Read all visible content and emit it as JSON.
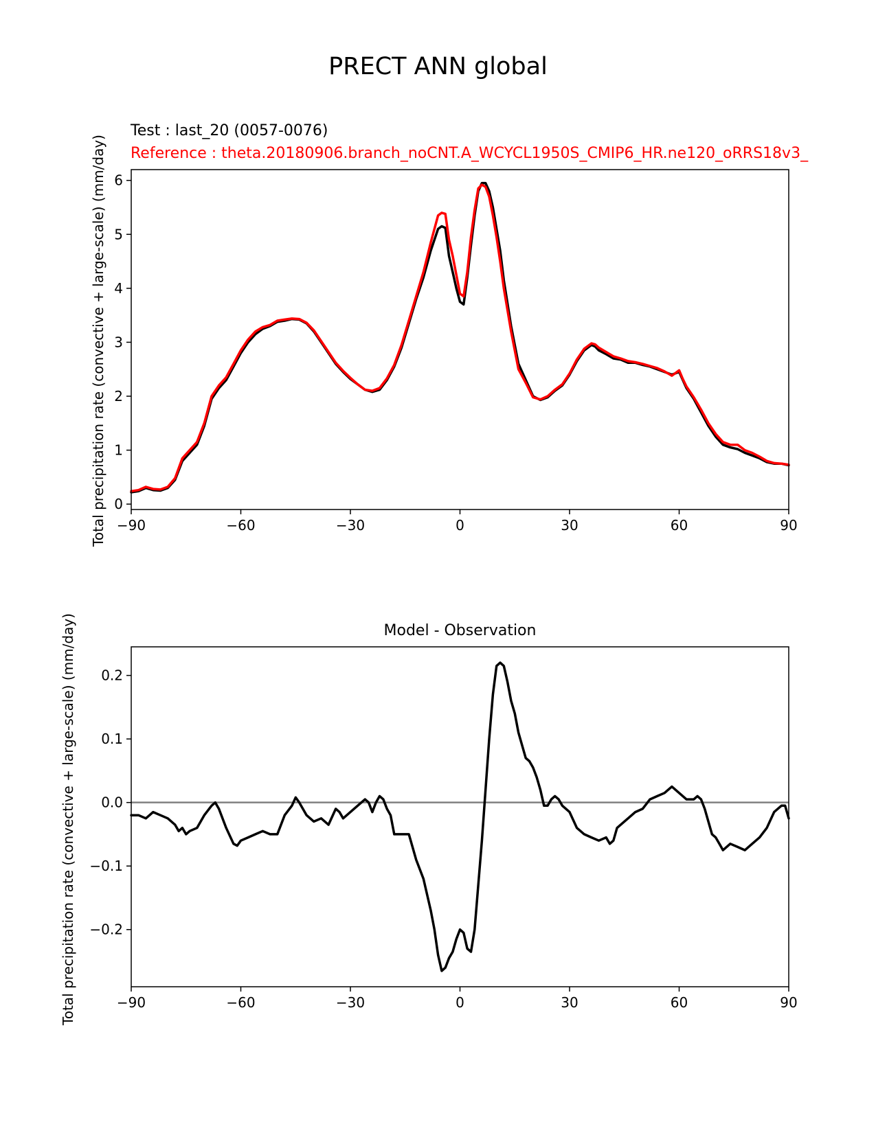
{
  "figure": {
    "title": "PRECT ANN global"
  },
  "chart_data": [
    {
      "type": "line",
      "test_label": "Test : last_20 (0057-0076)",
      "reference_label": "Reference : theta.20180906.branch_noCNT.A_WCYCL1950S_CMIP6_HR.ne120_oRRS18v3_",
      "xlabel": "",
      "ylabel": "Total precipitation rate (convective + large-scale) (mm/day)",
      "xlim": [
        -90,
        90
      ],
      "ylim": [
        -0.1,
        6.2
      ],
      "xticks": [
        -90,
        -60,
        -30,
        0,
        30,
        60,
        90
      ],
      "yticks": [
        0,
        1,
        2,
        3,
        4,
        5,
        6
      ],
      "tick_labels_x": [
        "−90",
        "−60",
        "−30",
        "0",
        "30",
        "60",
        "90"
      ],
      "tick_labels_y": [
        "0",
        "1",
        "2",
        "3",
        "4",
        "5",
        "6"
      ],
      "grid": false,
      "series": [
        {
          "name": "Test",
          "color": "#000000",
          "x": [
            -90,
            -88,
            -86,
            -84,
            -82,
            -80,
            -78,
            -76,
            -74,
            -72,
            -70,
            -68,
            -66,
            -64,
            -62,
            -60,
            -58,
            -56,
            -54,
            -52,
            -50,
            -48,
            -46,
            -44,
            -42,
            -40,
            -38,
            -36,
            -34,
            -32,
            -30,
            -28,
            -26,
            -24,
            -22,
            -20,
            -18,
            -16,
            -14,
            -12,
            -10,
            -8,
            -6,
            -5,
            -4,
            -3,
            -2,
            -1,
            0,
            1,
            2,
            3,
            4,
            5,
            6,
            7,
            8,
            9,
            10,
            11,
            12,
            14,
            16,
            18,
            20,
            22,
            24,
            26,
            28,
            30,
            32,
            34,
            36,
            37,
            38,
            40,
            42,
            44,
            46,
            48,
            50,
            52,
            54,
            56,
            58,
            60,
            61,
            62,
            64,
            66,
            68,
            70,
            72,
            74,
            76,
            78,
            80,
            82,
            84,
            86,
            88,
            90
          ],
          "y": [
            0.22,
            0.24,
            0.3,
            0.26,
            0.25,
            0.3,
            0.45,
            0.8,
            0.95,
            1.1,
            1.45,
            1.95,
            2.15,
            2.3,
            2.55,
            2.8,
            3.0,
            3.15,
            3.25,
            3.3,
            3.38,
            3.4,
            3.43,
            3.42,
            3.35,
            3.2,
            3.0,
            2.8,
            2.6,
            2.45,
            2.32,
            2.22,
            2.12,
            2.08,
            2.12,
            2.3,
            2.55,
            2.9,
            3.35,
            3.8,
            4.2,
            4.7,
            5.1,
            5.15,
            5.12,
            4.6,
            4.3,
            4.0,
            3.75,
            3.7,
            4.2,
            4.8,
            5.35,
            5.8,
            5.95,
            5.95,
            5.8,
            5.5,
            5.1,
            4.7,
            4.15,
            3.3,
            2.6,
            2.3,
            2.0,
            1.93,
            1.98,
            2.1,
            2.2,
            2.4,
            2.65,
            2.85,
            2.95,
            2.92,
            2.85,
            2.78,
            2.7,
            2.68,
            2.62,
            2.62,
            2.58,
            2.55,
            2.5,
            2.45,
            2.4,
            2.45,
            2.3,
            2.15,
            1.95,
            1.7,
            1.45,
            1.25,
            1.1,
            1.05,
            1.02,
            0.95,
            0.9,
            0.85,
            0.78,
            0.75,
            0.75,
            0.72
          ]
        },
        {
          "name": "Reference",
          "color": "#ff0000",
          "x": [
            -90,
            -88,
            -86,
            -84,
            -82,
            -80,
            -78,
            -76,
            -74,
            -72,
            -70,
            -68,
            -66,
            -64,
            -62,
            -60,
            -58,
            -56,
            -54,
            -52,
            -50,
            -48,
            -46,
            -44,
            -42,
            -40,
            -38,
            -36,
            -34,
            -32,
            -30,
            -28,
            -26,
            -24,
            -22,
            -20,
            -18,
            -16,
            -14,
            -12,
            -10,
            -8,
            -6,
            -5,
            -4,
            -3,
            -2,
            -1,
            0,
            1,
            2,
            3,
            4,
            5,
            6,
            7,
            8,
            9,
            10,
            11,
            12,
            14,
            16,
            18,
            20,
            22,
            24,
            26,
            28,
            30,
            32,
            34,
            36,
            37,
            38,
            40,
            42,
            44,
            46,
            48,
            50,
            52,
            54,
            56,
            58,
            60,
            61,
            62,
            64,
            66,
            68,
            70,
            72,
            74,
            76,
            78,
            80,
            82,
            84,
            86,
            88,
            90
          ],
          "y": [
            0.24,
            0.26,
            0.32,
            0.28,
            0.27,
            0.32,
            0.48,
            0.85,
            1.0,
            1.15,
            1.5,
            2.0,
            2.2,
            2.35,
            2.6,
            2.85,
            3.05,
            3.2,
            3.28,
            3.32,
            3.4,
            3.42,
            3.44,
            3.43,
            3.36,
            3.22,
            3.02,
            2.82,
            2.62,
            2.47,
            2.34,
            2.22,
            2.12,
            2.1,
            2.15,
            2.33,
            2.58,
            2.95,
            3.4,
            3.85,
            4.3,
            4.85,
            5.35,
            5.4,
            5.38,
            4.9,
            4.6,
            4.25,
            3.9,
            3.85,
            4.3,
            4.95,
            5.45,
            5.85,
            5.92,
            5.88,
            5.7,
            5.35,
            4.95,
            4.5,
            4.0,
            3.2,
            2.5,
            2.25,
            1.98,
            1.94,
            2.0,
            2.12,
            2.22,
            2.42,
            2.68,
            2.88,
            2.98,
            2.96,
            2.9,
            2.82,
            2.74,
            2.7,
            2.65,
            2.63,
            2.6,
            2.56,
            2.52,
            2.46,
            2.38,
            2.48,
            2.32,
            2.18,
            1.98,
            1.75,
            1.5,
            1.3,
            1.15,
            1.1,
            1.1,
            1.0,
            0.95,
            0.88,
            0.8,
            0.76,
            0.75,
            0.73
          ]
        }
      ]
    },
    {
      "type": "line",
      "title": "Model - Observation",
      "xlabel": "",
      "ylabel": "Total precipitation rate (convective + large-scale) (mm/day)",
      "xlim": [
        -90,
        90
      ],
      "ylim": [
        -0.29,
        0.245
      ],
      "xticks": [
        -90,
        -60,
        -30,
        0,
        30,
        60,
        90
      ],
      "yticks": [
        -0.2,
        -0.1,
        0.0,
        0.1,
        0.2
      ],
      "tick_labels_x": [
        "−90",
        "−60",
        "−30",
        "0",
        "30",
        "60",
        "90"
      ],
      "tick_labels_y": [
        "−0.2",
        "−0.1",
        "0.0",
        "0.1",
        "0.2"
      ],
      "grid": false,
      "zero_line_color": "#808080",
      "series": [
        {
          "name": "Model - Observation",
          "color": "#000000",
          "x": [
            -90,
            -88,
            -86,
            -84,
            -82,
            -80,
            -78,
            -77,
            -76,
            -75,
            -74,
            -72,
            -70,
            -68,
            -67,
            -66,
            -64,
            -62,
            -61,
            -60,
            -58,
            -56,
            -54,
            -52,
            -50,
            -48,
            -46,
            -45,
            -44,
            -42,
            -40,
            -38,
            -36,
            -34,
            -33,
            -32,
            -30,
            -28,
            -26,
            -25,
            -24,
            -23,
            -22,
            -21,
            -20,
            -19,
            -18,
            -16,
            -14,
            -13,
            -12,
            -10,
            -8,
            -7,
            -6,
            -5,
            -4,
            -3,
            -2,
            -1,
            0,
            1,
            2,
            3,
            4,
            5,
            6,
            7,
            8,
            9,
            10,
            11,
            12,
            13,
            14,
            15,
            16,
            17,
            18,
            19,
            20,
            21,
            22,
            23,
            24,
            25,
            26,
            27,
            28,
            30,
            32,
            34,
            36,
            38,
            40,
            41,
            42,
            43,
            44,
            46,
            48,
            50,
            52,
            54,
            56,
            57,
            58,
            60,
            62,
            64,
            65,
            66,
            67,
            68,
            69,
            70,
            71,
            72,
            74,
            76,
            78,
            80,
            82,
            84,
            86,
            88,
            89,
            90
          ],
          "y": [
            -0.02,
            -0.02,
            -0.025,
            -0.015,
            -0.02,
            -0.025,
            -0.035,
            -0.045,
            -0.04,
            -0.05,
            -0.045,
            -0.04,
            -0.02,
            -0.005,
            0.0,
            -0.01,
            -0.04,
            -0.065,
            -0.068,
            -0.06,
            -0.055,
            -0.05,
            -0.045,
            -0.05,
            -0.05,
            -0.02,
            -0.005,
            0.008,
            0.0,
            -0.02,
            -0.03,
            -0.025,
            -0.035,
            -0.01,
            -0.015,
            -0.025,
            -0.015,
            -0.005,
            0.005,
            0.0,
            -0.015,
            0.0,
            0.01,
            0.005,
            -0.01,
            -0.02,
            -0.05,
            -0.05,
            -0.05,
            -0.07,
            -0.09,
            -0.12,
            -0.17,
            -0.2,
            -0.24,
            -0.265,
            -0.26,
            -0.245,
            -0.235,
            -0.215,
            -0.2,
            -0.205,
            -0.23,
            -0.235,
            -0.2,
            -0.13,
            -0.06,
            0.02,
            0.1,
            0.17,
            0.215,
            0.22,
            0.215,
            0.19,
            0.16,
            0.14,
            0.11,
            0.09,
            0.07,
            0.065,
            0.055,
            0.04,
            0.02,
            -0.005,
            -0.005,
            0.005,
            0.01,
            0.005,
            -0.005,
            -0.015,
            -0.04,
            -0.05,
            -0.055,
            -0.06,
            -0.055,
            -0.065,
            -0.06,
            -0.04,
            -0.035,
            -0.025,
            -0.015,
            -0.01,
            0.005,
            0.01,
            0.015,
            0.02,
            0.025,
            0.015,
            0.005,
            0.005,
            0.01,
            0.005,
            -0.01,
            -0.03,
            -0.05,
            -0.055,
            -0.065,
            -0.075,
            -0.065,
            -0.07,
            -0.075,
            -0.065,
            -0.055,
            -0.04,
            -0.015,
            -0.005,
            -0.005,
            -0.025
          ]
        }
      ]
    }
  ]
}
